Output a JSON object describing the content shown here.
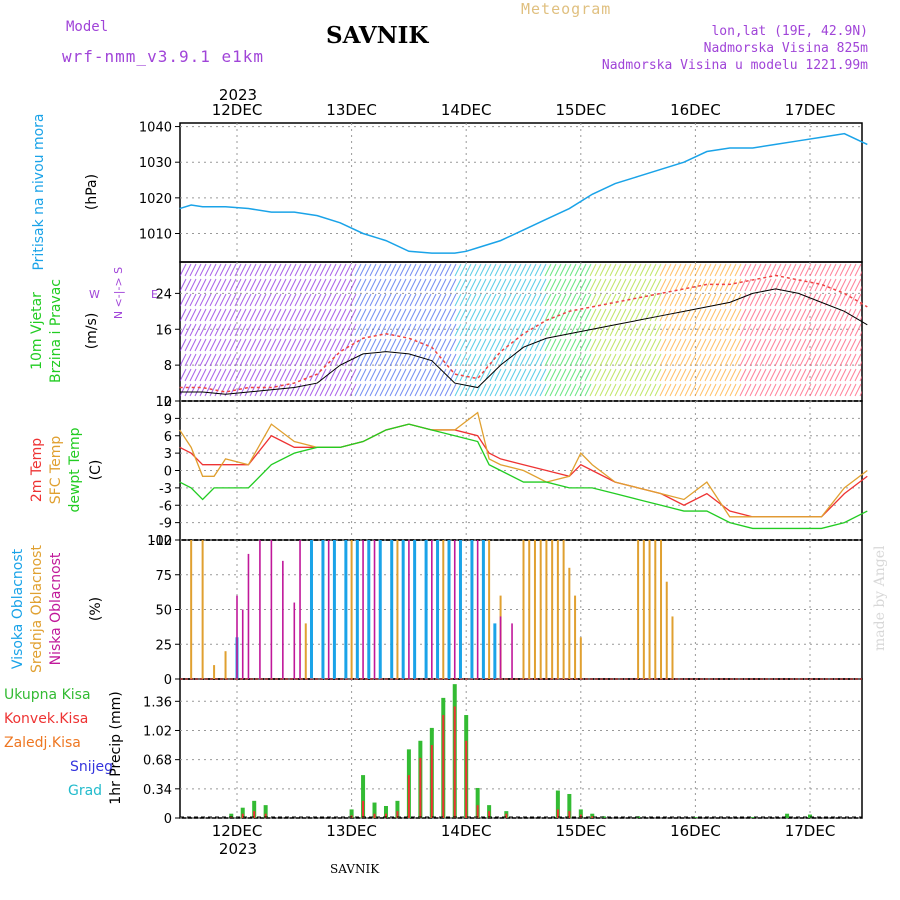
{
  "header": {
    "model_label": "Model",
    "model_name": "wrf-nmm_v3.9.1 e1km",
    "title": "SAVNIK",
    "meteogram": "Meteogram",
    "lonlat": "lon,lat (19E, 42.9N)",
    "elevation": "Nadmorska Visina 825m",
    "model_elevation": "Nadmorska Visina u modelu 1221.99m"
  },
  "footer": {
    "station": "SAVNIK",
    "credit": "made by Angel"
  },
  "time_axis": {
    "year": "2023",
    "days": [
      "12DEC",
      "13DEC",
      "14DEC",
      "15DEC",
      "16DEC",
      "17DEC"
    ]
  },
  "colors": {
    "pressure": "#1aa3e8",
    "wind_label": "#22cc22",
    "temp2m": "#ee3333",
    "sfc": "#e0a030",
    "dewpt": "#22cc22",
    "high_cloud": "#1aa3e8",
    "mid_cloud": "#e0a030",
    "low_cloud": "#c0189a",
    "total_precip": "#33bb33",
    "conv_precip": "#ee3333",
    "frz_precip": "#ee7722",
    "snow": "#3333dd",
    "hail": "#22bbcc",
    "purple": "#a044d8"
  },
  "chart_data": [
    {
      "type": "line",
      "panel": "pressure",
      "ylabel": [
        "Pritisak na nivou mora",
        "(hPa)"
      ],
      "yticks": [
        1010,
        1020,
        1030,
        1040
      ],
      "ylim": [
        1002,
        1041
      ],
      "x_days": [
        0,
        0.1,
        0.2,
        0.4,
        0.6,
        0.8,
        1.0,
        1.2,
        1.4,
        1.6,
        1.8,
        2.0,
        2.2,
        2.4,
        2.5,
        2.6,
        2.8,
        3.0,
        3.2,
        3.4,
        3.6,
        3.8,
        4.0,
        4.2,
        4.4,
        4.6,
        4.8,
        5.0,
        5.2,
        5.4,
        5.6,
        5.8,
        6.0
      ],
      "series": [
        {
          "values": [
            1017,
            1018,
            1017.5,
            1017.5,
            1017,
            1016,
            1016,
            1015,
            1013,
            1010,
            1008,
            1005,
            1004.5,
            1004.5,
            1005,
            1006,
            1008,
            1011,
            1014,
            1017,
            1021,
            1024,
            1026,
            1028,
            1030,
            1033,
            1034,
            1034,
            1035,
            1036,
            1037,
            1038,
            1035
          ]
        }
      ]
    },
    {
      "type": "line",
      "panel": "wind",
      "ylabel": [
        "10m Vjetar",
        "Brzina i Pravac",
        "(m/s)"
      ],
      "direction_legend": [
        "N",
        "<-|->",
        "S",
        "W",
        "E"
      ],
      "yticks": [
        0,
        8,
        16,
        24
      ],
      "ylim": [
        0,
        31
      ],
      "x_days": [
        0,
        0.2,
        0.4,
        0.6,
        0.8,
        1.0,
        1.2,
        1.4,
        1.6,
        1.8,
        2.0,
        2.2,
        2.4,
        2.6,
        2.8,
        3.0,
        3.2,
        3.4,
        3.6,
        3.8,
        4.0,
        4.2,
        4.4,
        4.6,
        4.8,
        5.0,
        5.2,
        5.4,
        5.6,
        5.8,
        6.0
      ],
      "series": [
        {
          "values": [
            2,
            2,
            1.5,
            2,
            2.5,
            3,
            4,
            8,
            10.5,
            11,
            10.5,
            9,
            4,
            3,
            8,
            12,
            14,
            15,
            16,
            17,
            18,
            19,
            20,
            21,
            22,
            24,
            25,
            24,
            22,
            20,
            17
          ]
        },
        {
          "values": [
            3,
            3,
            2,
            3,
            3,
            4,
            6,
            11,
            14,
            15,
            14,
            12,
            6,
            5,
            11,
            15,
            18,
            20,
            21,
            22,
            23,
            24,
            25,
            26,
            26,
            27,
            28,
            27,
            26,
            24,
            21
          ]
        }
      ]
    },
    {
      "type": "line",
      "panel": "temperature",
      "ylabel": [
        "2m Temp",
        "SFC Temp",
        "dewpt Temp",
        "(C)"
      ],
      "yticks": [
        -12,
        -9,
        -6,
        -3,
        0,
        3,
        6,
        9,
        12
      ],
      "ylim": [
        -12,
        12
      ],
      "x_days": [
        0,
        0.1,
        0.2,
        0.3,
        0.4,
        0.6,
        0.8,
        1.0,
        1.2,
        1.4,
        1.6,
        1.8,
        2.0,
        2.2,
        2.4,
        2.6,
        2.7,
        2.8,
        3.0,
        3.2,
        3.4,
        3.5,
        3.6,
        3.8,
        4.0,
        4.2,
        4.4,
        4.6,
        4.8,
        5.0,
        5.2,
        5.4,
        5.6,
        5.8,
        6.0
      ],
      "series": [
        {
          "name": "2m Temp",
          "values": [
            4,
            3,
            1,
            1,
            1,
            1,
            6,
            4,
            4,
            4,
            5,
            7,
            8,
            7,
            7,
            6,
            3,
            2,
            1,
            0,
            -1,
            1,
            0,
            -2,
            -3,
            -4,
            -6,
            -4,
            -7,
            -8,
            -8,
            -8,
            -8,
            -4,
            -1
          ]
        },
        {
          "name": "SFC Temp",
          "values": [
            7,
            4,
            -1,
            -1,
            2,
            1,
            8,
            5,
            4,
            4,
            5,
            7,
            8,
            7,
            7,
            10,
            2,
            1,
            0,
            -2,
            -1,
            3,
            1,
            -2,
            -3,
            -4,
            -5,
            -2,
            -8,
            -8,
            -8,
            -8,
            -8,
            -3,
            0
          ]
        },
        {
          "name": "dewpt Temp",
          "values": [
            -2,
            -3,
            -5,
            -3,
            -3,
            -3,
            1,
            3,
            4,
            4,
            5,
            7,
            8,
            7,
            6,
            5,
            1,
            0,
            -2,
            -2,
            -3,
            -3,
            -3,
            -4,
            -5,
            -6,
            -7,
            -7,
            -9,
            -10,
            -10,
            -10,
            -10,
            -9,
            -7
          ]
        }
      ]
    },
    {
      "type": "bar",
      "panel": "clouds",
      "ylabel": [
        "Visoka Oblacnost",
        "Srednja Oblacnost",
        "Niska Oblacnost",
        "(%)"
      ],
      "yticks": [
        0,
        25,
        50,
        75,
        100
      ],
      "ylim": [
        0,
        100
      ],
      "series": [
        {
          "name": "Visoka Oblacnost",
          "x_days": [
            0.5,
            1.15,
            1.25,
            1.35,
            1.45,
            1.55,
            1.65,
            1.75,
            1.85,
            1.95,
            2.05,
            2.15,
            2.25,
            2.35,
            2.45,
            2.55,
            2.65,
            2.75
          ],
          "values": [
            30,
            100,
            100,
            100,
            100,
            100,
            100,
            100,
            100,
            100,
            100,
            100,
            100,
            100,
            100,
            100,
            100,
            40
          ]
        },
        {
          "name": "Srednja Oblacnost",
          "x_days": [
            0.1,
            0.2,
            0.3,
            0.4,
            1.1,
            1.5,
            1.9,
            2.3,
            2.7,
            2.8,
            3.0,
            3.05,
            3.1,
            3.15,
            3.2,
            3.25,
            3.3,
            3.35,
            3.4,
            3.45,
            3.5,
            4.0,
            4.05,
            4.1,
            4.15,
            4.2,
            4.25,
            4.3
          ],
          "values": [
            100,
            100,
            10,
            20,
            40,
            100,
            100,
            100,
            100,
            60,
            100,
            100,
            100,
            100,
            100,
            100,
            100,
            100,
            80,
            60,
            30,
            100,
            100,
            100,
            100,
            100,
            70,
            45
          ]
        },
        {
          "name": "Niska Oblacnost",
          "x_days": [
            0.5,
            0.55,
            0.6,
            0.7,
            0.8,
            0.9,
            1.0,
            1.05,
            1.3,
            1.6,
            1.7,
            2.0,
            2.2,
            2.4,
            2.6,
            2.8,
            2.9
          ],
          "values": [
            60,
            50,
            90,
            100,
            100,
            85,
            55,
            100,
            100,
            100,
            100,
            100,
            100,
            100,
            100,
            45,
            40
          ]
        }
      ]
    },
    {
      "type": "bar",
      "panel": "precipitation",
      "ylabel": [
        "1hr Precip (mm)"
      ],
      "legend": [
        "Ukupna Kisa",
        "Konvek.Kisa",
        "Zaledj.Kisa",
        "Snijeg",
        "Grad"
      ],
      "yticks": [
        0,
        0.34,
        0.68,
        1.02,
        1.36
      ],
      "ylim": [
        0,
        1.62
      ],
      "x_days": [
        0.45,
        0.55,
        0.65,
        0.75,
        1.5,
        1.6,
        1.7,
        1.8,
        1.9,
        2.0,
        2.1,
        2.2,
        2.3,
        2.4,
        2.5,
        2.6,
        2.7,
        2.85,
        3.3,
        3.4,
        3.5,
        3.6,
        3.7,
        4.0,
        4.5,
        5.0,
        5.3,
        5.5
      ],
      "series": [
        {
          "name": "Ukupna Kisa",
          "values": [
            0.05,
            0.12,
            0.2,
            0.15,
            0.1,
            0.5,
            0.18,
            0.14,
            0.2,
            0.8,
            0.9,
            1.05,
            1.4,
            1.56,
            1.2,
            0.35,
            0.15,
            0.08,
            0.32,
            0.28,
            0.1,
            0.05,
            0.02,
            0.02,
            0.01,
            0.01,
            0.05,
            0.04
          ]
        },
        {
          "name": "Konvek.Kisa",
          "values": [
            0.02,
            0.05,
            0.08,
            0.05,
            0.03,
            0.2,
            0.05,
            0.05,
            0.08,
            0.5,
            0.7,
            0.85,
            1.2,
            1.3,
            0.9,
            0.15,
            0.08,
            0.05,
            0.1,
            0.08,
            0.04,
            0.02,
            0,
            0,
            0,
            0,
            0,
            0
          ]
        }
      ]
    }
  ]
}
